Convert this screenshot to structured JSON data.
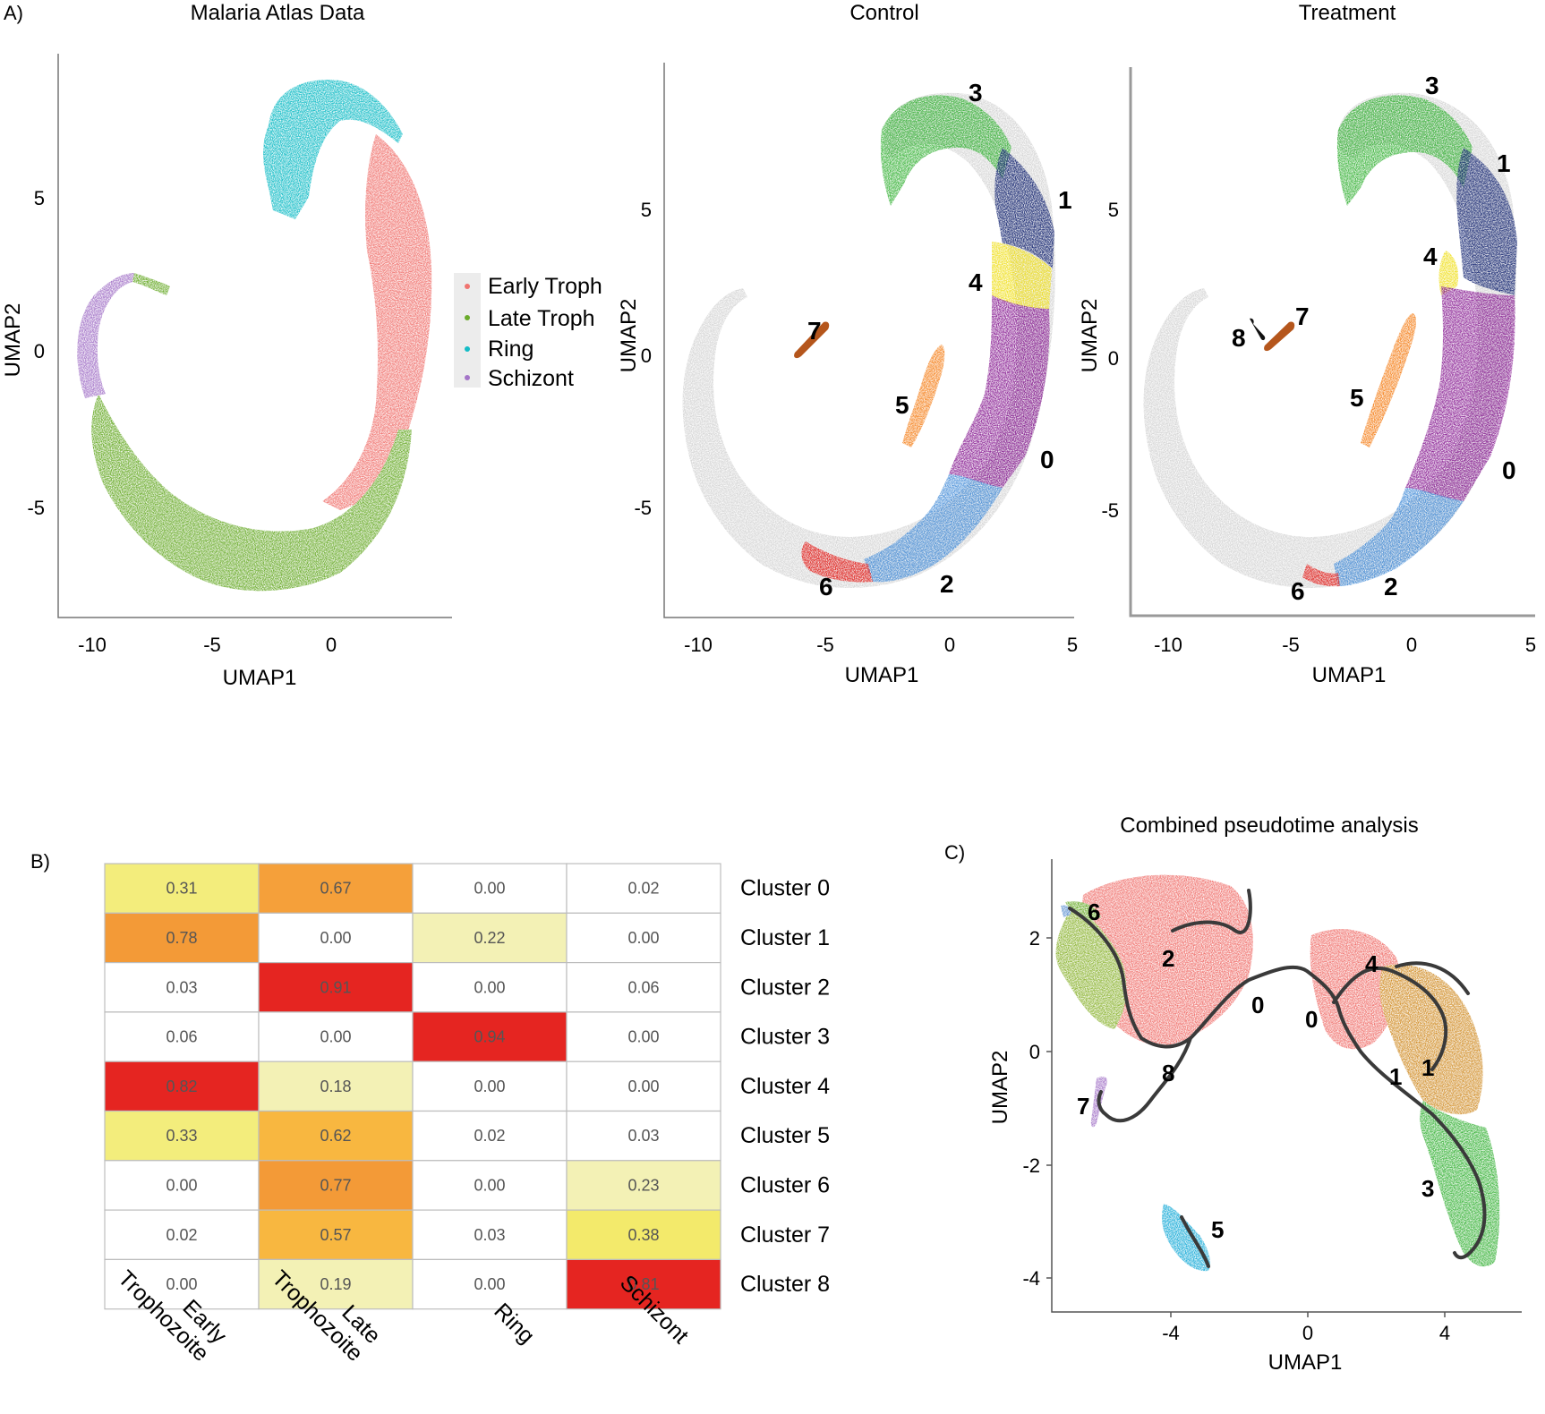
{
  "panel_a": {
    "letter": "A)",
    "plots": [
      {
        "title": "Malaria Atlas Data",
        "xlabel": "UMAP1",
        "ylabel": "UMAP2",
        "xticks": [
          "-10",
          "-5",
          "0"
        ],
        "yticks": [
          "5",
          "0",
          "-5"
        ],
        "legend": [
          {
            "label": "Early Troph",
            "color": "#f07470"
          },
          {
            "label": "Late Troph",
            "color": "#6aab2b"
          },
          {
            "label": "Ring",
            "color": "#14bcc6"
          },
          {
            "label": "Schizont",
            "color": "#a475c8"
          }
        ]
      },
      {
        "title": "Control",
        "xlabel": "UMAP1",
        "ylabel": "UMAP2",
        "xticks": [
          "-10",
          "-5",
          "0",
          "5"
        ],
        "yticks": [
          "5",
          "0",
          "-5"
        ],
        "cluster_labels": [
          "3",
          "1",
          "4",
          "7",
          "5",
          "0",
          "6",
          "2"
        ]
      },
      {
        "title": "Treatment",
        "xlabel": "UMAP1",
        "ylabel": "UMAP2",
        "xticks": [
          "-10",
          "-5",
          "0",
          "5"
        ],
        "yticks": [
          "5",
          "0",
          "-5"
        ],
        "cluster_labels": [
          "3",
          "1",
          "4",
          "7",
          "8",
          "5",
          "0",
          "6",
          "2"
        ]
      }
    ]
  },
  "panel_b": {
    "letter": "B)",
    "columns": [
      [
        "Early",
        "Trophozoite"
      ],
      [
        "Late",
        "Trophozoite"
      ],
      [
        "Ring"
      ],
      [
        "Schizont"
      ]
    ],
    "rows": [
      "Cluster 0",
      "Cluster 1",
      "Cluster 2",
      "Cluster 3",
      "Cluster 4",
      "Cluster 5",
      "Cluster 6",
      "Cluster 7",
      "Cluster 8"
    ],
    "values": [
      [
        "0.31",
        "0.67",
        "0.00",
        "0.02"
      ],
      [
        "0.78",
        "0.00",
        "0.22",
        "0.00"
      ],
      [
        "0.03",
        "0.91",
        "0.00",
        "0.06"
      ],
      [
        "0.06",
        "0.00",
        "0.94",
        "0.00"
      ],
      [
        "0.82",
        "0.18",
        "0.00",
        "0.00"
      ],
      [
        "0.33",
        "0.62",
        "0.02",
        "0.03"
      ],
      [
        "0.00",
        "0.77",
        "0.00",
        "0.23"
      ],
      [
        "0.02",
        "0.57",
        "0.03",
        "0.38"
      ],
      [
        "0.00",
        "0.19",
        "0.00",
        "0.81"
      ]
    ]
  },
  "panel_c": {
    "letter": "C)",
    "title": "Combined pseudotime analysis",
    "xlabel": "UMAP1",
    "ylabel": "UMAP2",
    "xticks": [
      "-4",
      "0",
      "4"
    ],
    "yticks": [
      "2",
      "0",
      "-2",
      "-4"
    ],
    "cluster_labels": [
      "6",
      "2",
      "0",
      "0",
      "4",
      "1",
      "1",
      "8",
      "7",
      "3",
      "5"
    ]
  },
  "chart_data": [
    {
      "type": "scatter",
      "title": "Malaria Atlas Data",
      "xlabel": "UMAP1",
      "ylabel": "UMAP2",
      "xlim": [
        -11,
        4.5
      ],
      "ylim": [
        -8.5,
        9.5
      ],
      "series": [
        {
          "name": "Early Troph",
          "color": "#f07470"
        },
        {
          "name": "Late Troph",
          "color": "#6aab2b"
        },
        {
          "name": "Ring",
          "color": "#14bcc6"
        },
        {
          "name": "Schizont",
          "color": "#a475c8"
        }
      ],
      "legend": "right"
    },
    {
      "type": "scatter",
      "title": "Control",
      "xlabel": "UMAP1",
      "ylabel": "UMAP2",
      "xlim": [
        -12,
        5
      ],
      "ylim": [
        -8.5,
        9.5
      ],
      "clusters": [
        "0",
        "1",
        "2",
        "3",
        "4",
        "5",
        "6",
        "7"
      ]
    },
    {
      "type": "scatter",
      "title": "Treatment",
      "xlabel": "UMAP1",
      "ylabel": "UMAP2",
      "xlim": [
        -12,
        5
      ],
      "ylim": [
        -8.5,
        9.5
      ],
      "clusters": [
        "0",
        "1",
        "2",
        "3",
        "4",
        "5",
        "6",
        "7",
        "8"
      ]
    },
    {
      "type": "heatmap",
      "x": [
        "Early Trophozoite",
        "Late Trophozoite",
        "Ring",
        "Schizont"
      ],
      "y": [
        "Cluster 0",
        "Cluster 1",
        "Cluster 2",
        "Cluster 3",
        "Cluster 4",
        "Cluster 5",
        "Cluster 6",
        "Cluster 7",
        "Cluster 8"
      ],
      "values": [
        [
          0.31,
          0.67,
          0.0,
          0.02
        ],
        [
          0.78,
          0.0,
          0.22,
          0.0
        ],
        [
          0.03,
          0.91,
          0.0,
          0.06
        ],
        [
          0.06,
          0.0,
          0.94,
          0.0
        ],
        [
          0.82,
          0.18,
          0.0,
          0.0
        ],
        [
          0.33,
          0.62,
          0.02,
          0.03
        ],
        [
          0.0,
          0.77,
          0.0,
          0.23
        ],
        [
          0.02,
          0.57,
          0.03,
          0.38
        ],
        [
          0.0,
          0.19,
          0.0,
          0.81
        ]
      ]
    },
    {
      "type": "scatter",
      "title": "Combined pseudotime analysis",
      "xlabel": "UMAP1",
      "ylabel": "UMAP2",
      "xlim": [
        -7,
        7.7
      ],
      "ylim": [
        -4.5,
        3.5
      ],
      "clusters": [
        "0",
        "1",
        "2",
        "3",
        "4",
        "5",
        "6",
        "7",
        "8"
      ]
    }
  ]
}
